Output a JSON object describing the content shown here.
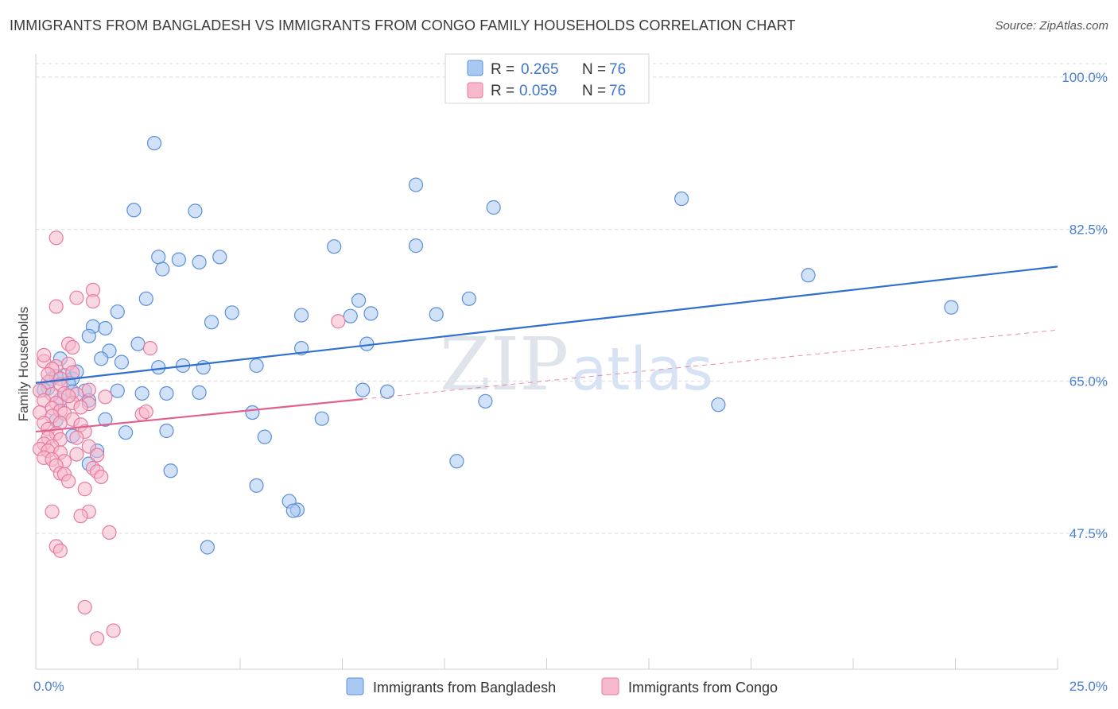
{
  "title": "IMMIGRANTS FROM BANGLADESH VS IMMIGRANTS FROM CONGO FAMILY HOUSEHOLDS CORRELATION CHART",
  "source": "Source: ZipAtlas.com",
  "watermark": {
    "zip": "ZIP",
    "atlas": "atlas"
  },
  "colors": {
    "blue_fill": "#a9c8f2",
    "blue_stroke": "#5b8fd8",
    "blue_line": "#2f6fcf",
    "pink_fill": "#f6b8cb",
    "pink_stroke": "#e87aa0",
    "pink_line": "#e0608e",
    "grid": "#d9d9d9",
    "tick_text": "#4a7fd4"
  },
  "legend": {
    "series1": {
      "r_label": "R =",
      "r_value": "0.265",
      "n_label": "N =",
      "n_value": "76"
    },
    "series2": {
      "r_label": "R =",
      "r_value": "0.059",
      "n_label": "N =",
      "n_value": "76"
    }
  },
  "chart_data": {
    "type": "scatter",
    "title": "IMMIGRANTS FROM BANGLADESH VS IMMIGRANTS FROM CONGO FAMILY HOUSEHOLDS CORRELATION CHART",
    "xlabel": "",
    "ylabel": "Family Households",
    "xlim": [
      0,
      25
    ],
    "ylim": [
      30,
      102
    ],
    "x_tick_labels": [
      "0.0%",
      "25.0%"
    ],
    "y_ticks": [
      47.5,
      65.0,
      82.5,
      100.0
    ],
    "y_tick_labels": [
      "47.5%",
      "65.0%",
      "82.5%",
      "100.0%"
    ],
    "legend_position": "top-center",
    "series": [
      {
        "name": "Immigrants from Bangladesh",
        "r": 0.265,
        "n": 76,
        "trend": {
          "x": [
            0,
            25
          ],
          "y": [
            64.8,
            78.2
          ],
          "dashed_from": null
        },
        "points": [
          [
            2.9,
            92.4
          ],
          [
            9.3,
            87.6
          ],
          [
            2.4,
            84.7
          ],
          [
            3.9,
            84.6
          ],
          [
            11.2,
            85.0
          ],
          [
            15.8,
            86.0
          ],
          [
            3.0,
            79.3
          ],
          [
            3.5,
            79.0
          ],
          [
            4.0,
            78.7
          ],
          [
            4.5,
            79.3
          ],
          [
            3.1,
            77.9
          ],
          [
            7.3,
            80.5
          ],
          [
            9.3,
            80.6
          ],
          [
            18.9,
            77.2
          ],
          [
            2.7,
            74.5
          ],
          [
            7.9,
            74.3
          ],
          [
            10.6,
            74.5
          ],
          [
            22.4,
            73.5
          ],
          [
            2.0,
            73.0
          ],
          [
            4.8,
            72.9
          ],
          [
            6.5,
            72.6
          ],
          [
            8.2,
            72.8
          ],
          [
            7.7,
            72.5
          ],
          [
            9.8,
            72.7
          ],
          [
            1.4,
            71.3
          ],
          [
            1.7,
            71.1
          ],
          [
            4.3,
            71.8
          ],
          [
            1.3,
            70.2
          ],
          [
            1.8,
            68.5
          ],
          [
            2.5,
            69.3
          ],
          [
            6.5,
            68.8
          ],
          [
            8.1,
            69.3
          ],
          [
            1.6,
            67.6
          ],
          [
            2.1,
            67.2
          ],
          [
            3.0,
            66.6
          ],
          [
            3.6,
            66.8
          ],
          [
            4.1,
            66.6
          ],
          [
            5.4,
            66.8
          ],
          [
            0.4,
            65.3
          ],
          [
            0.7,
            65.7
          ],
          [
            0.9,
            65.3
          ],
          [
            1.0,
            66.1
          ],
          [
            0.6,
            67.6
          ],
          [
            0.5,
            65.6
          ],
          [
            0.8,
            64.8
          ],
          [
            0.9,
            63.8
          ],
          [
            1.2,
            63.9
          ],
          [
            2.0,
            63.9
          ],
          [
            2.6,
            63.6
          ],
          [
            3.2,
            63.6
          ],
          [
            4.0,
            63.7
          ],
          [
            8.6,
            63.8
          ],
          [
            8.0,
            64.0
          ],
          [
            0.6,
            62.9
          ],
          [
            1.3,
            62.8
          ],
          [
            0.3,
            64.2
          ],
          [
            0.2,
            64.0
          ],
          [
            11.0,
            62.7
          ],
          [
            16.7,
            62.3
          ],
          [
            1.7,
            60.6
          ],
          [
            7.0,
            60.7
          ],
          [
            0.5,
            60.5
          ],
          [
            3.2,
            59.3
          ],
          [
            2.2,
            59.1
          ],
          [
            5.6,
            58.6
          ],
          [
            10.3,
            55.8
          ],
          [
            0.9,
            58.7
          ],
          [
            1.5,
            57.0
          ],
          [
            1.3,
            55.5
          ],
          [
            3.3,
            54.7
          ],
          [
            5.4,
            53.0
          ],
          [
            6.2,
            51.2
          ],
          [
            6.4,
            50.2
          ],
          [
            6.3,
            50.1
          ],
          [
            4.2,
            45.9
          ],
          [
            5.3,
            61.4
          ]
        ]
      },
      {
        "name": "Immigrants from Congo",
        "r": 0.059,
        "n": 76,
        "trend": {
          "x": [
            0,
            25
          ],
          "y": [
            59.2,
            70.9
          ],
          "dashed_from": 8.0
        },
        "points": [
          [
            0.5,
            81.5
          ],
          [
            1.4,
            75.5
          ],
          [
            1.0,
            74.6
          ],
          [
            1.4,
            74.2
          ],
          [
            0.5,
            73.6
          ],
          [
            7.4,
            71.9
          ],
          [
            0.8,
            69.3
          ],
          [
            0.9,
            68.9
          ],
          [
            2.8,
            68.8
          ],
          [
            0.2,
            67.3
          ],
          [
            0.5,
            66.7
          ],
          [
            0.8,
            67.0
          ],
          [
            0.4,
            66.4
          ],
          [
            0.6,
            65.3
          ],
          [
            0.3,
            64.9
          ],
          [
            0.6,
            64.6
          ],
          [
            0.1,
            63.9
          ],
          [
            0.4,
            63.5
          ],
          [
            0.7,
            63.6
          ],
          [
            1.0,
            63.5
          ],
          [
            0.2,
            62.8
          ],
          [
            0.5,
            62.5
          ],
          [
            0.9,
            62.5
          ],
          [
            1.3,
            62.4
          ],
          [
            1.1,
            62.0
          ],
          [
            0.4,
            61.9
          ],
          [
            0.6,
            61.6
          ],
          [
            0.7,
            61.3
          ],
          [
            0.1,
            61.4
          ],
          [
            0.4,
            61.0
          ],
          [
            0.9,
            60.6
          ],
          [
            2.6,
            61.2
          ],
          [
            0.2,
            60.2
          ],
          [
            0.6,
            60.2
          ],
          [
            1.1,
            60.0
          ],
          [
            0.3,
            59.5
          ],
          [
            0.5,
            59.0
          ],
          [
            1.2,
            59.2
          ],
          [
            0.3,
            58.5
          ],
          [
            0.6,
            58.3
          ],
          [
            1.0,
            58.5
          ],
          [
            0.2,
            57.8
          ],
          [
            0.4,
            57.5
          ],
          [
            1.3,
            57.5
          ],
          [
            0.1,
            57.2
          ],
          [
            0.3,
            57.0
          ],
          [
            0.6,
            56.8
          ],
          [
            1.0,
            56.6
          ],
          [
            1.5,
            56.5
          ],
          [
            0.2,
            56.2
          ],
          [
            0.4,
            56.0
          ],
          [
            0.7,
            55.8
          ],
          [
            0.5,
            55.3
          ],
          [
            1.4,
            55.0
          ],
          [
            1.5,
            54.6
          ],
          [
            0.6,
            54.4
          ],
          [
            0.7,
            54.3
          ],
          [
            1.6,
            54.0
          ],
          [
            0.8,
            53.5
          ],
          [
            1.2,
            52.6
          ],
          [
            0.4,
            50.0
          ],
          [
            1.3,
            50.0
          ],
          [
            1.1,
            49.5
          ],
          [
            1.8,
            47.6
          ],
          [
            0.5,
            46.0
          ],
          [
            0.6,
            45.5
          ],
          [
            1.2,
            39.0
          ],
          [
            1.9,
            36.3
          ],
          [
            1.5,
            35.4
          ],
          [
            2.7,
            61.5
          ],
          [
            0.8,
            63.3
          ],
          [
            1.3,
            64.0
          ],
          [
            0.3,
            65.8
          ],
          [
            1.7,
            63.2
          ],
          [
            0.9,
            66.0
          ],
          [
            0.2,
            68.0
          ]
        ]
      }
    ]
  },
  "bottom_legend": {
    "series1_label": "Immigrants from Bangladesh",
    "series2_label": "Immigrants from Congo"
  }
}
